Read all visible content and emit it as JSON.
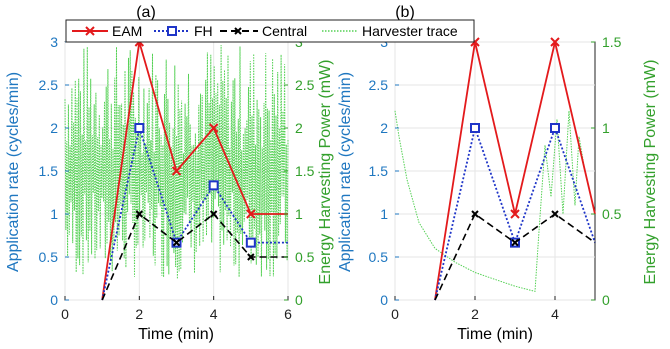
{
  "colors": {
    "left_axis": "#1f77c0",
    "right_axis": "#33a02c",
    "eam": "#e31a1c",
    "fh": "#1f35c8",
    "central": "#000000",
    "harvester": "#55d155"
  },
  "legend": {
    "eam": "EAM",
    "fh": "FH",
    "central": "Central",
    "harvester": "Harvester trace",
    "placement": "top"
  },
  "chart_data": [
    {
      "type": "line",
      "title": "(a)",
      "xlabel": "Time (min)",
      "ylabel": "Application rate (cycles/min)",
      "y2label": "Energy Harvesting Power (mW)",
      "xlim": [
        0,
        6
      ],
      "ylim": [
        0,
        3
      ],
      "y2lim": [
        0,
        3
      ],
      "xticks": [
        "0",
        "2",
        "4",
        "6"
      ],
      "yticks": [
        "0",
        "0.5",
        "1",
        "1.5",
        "2",
        "2.5",
        "3"
      ],
      "y2ticks": [
        "0",
        "0.5",
        "1",
        "1.5",
        "2",
        "2.5",
        "3"
      ],
      "grid": true,
      "series": [
        {
          "name": "EAM",
          "x": [
            1,
            2,
            3,
            4,
            5,
            6
          ],
          "y": [
            0,
            3,
            1.5,
            2,
            1,
            1
          ],
          "axis": "left"
        },
        {
          "name": "FH",
          "x": [
            1,
            2,
            3,
            4,
            5,
            6
          ],
          "y": [
            0,
            2,
            0.667,
            1.333,
            0.667,
            0.667
          ],
          "axis": "left"
        },
        {
          "name": "Central",
          "x": [
            1,
            2,
            3,
            4,
            5,
            6
          ],
          "y": [
            0,
            1,
            0.667,
            1,
            0.5,
            0.5
          ],
          "axis": "left"
        },
        {
          "name": "Harvester trace",
          "axis": "right",
          "style": "dense-oscillation",
          "range": [
            0.1,
            3.0
          ],
          "t_range": [
            0,
            6
          ]
        }
      ]
    },
    {
      "type": "line",
      "title": "(b)",
      "xlabel": "Time (min)",
      "ylabel": "Application rate (cycles/min)",
      "y2label": "Energy Harvesting Power (mW)",
      "xlim": [
        0,
        5
      ],
      "ylim": [
        0,
        3
      ],
      "y2lim": [
        0,
        1.5
      ],
      "xticks": [
        "0",
        "2",
        "4"
      ],
      "yticks": [
        "0",
        "0.5",
        "1",
        "1.5",
        "2",
        "2.5",
        "3"
      ],
      "y2ticks": [
        "0",
        "0.5",
        "1",
        "1.5"
      ],
      "grid": true,
      "series": [
        {
          "name": "EAM",
          "x": [
            1,
            2,
            3,
            4,
            5
          ],
          "y": [
            0,
            3,
            1,
            3,
            1
          ],
          "axis": "left"
        },
        {
          "name": "FH",
          "x": [
            1,
            2,
            3,
            4,
            5
          ],
          "y": [
            0,
            2,
            0.667,
            2,
            0.667
          ],
          "axis": "left"
        },
        {
          "name": "Central",
          "x": [
            1,
            2,
            3,
            4,
            5
          ],
          "y": [
            0,
            1,
            0.667,
            1,
            0.667
          ],
          "axis": "left"
        },
        {
          "name": "Harvester trace",
          "axis": "right",
          "style": "decay-then-spikes",
          "t": [
            0,
            0.1,
            0.3,
            0.6,
            1.0,
            1.5,
            2.0,
            2.5,
            3.0,
            3.5,
            3.6,
            3.75,
            3.9,
            4.05,
            4.2,
            4.35,
            4.5,
            4.6,
            4.75,
            4.9,
            5.0
          ],
          "p": [
            1.1,
            0.95,
            0.7,
            0.45,
            0.3,
            0.22,
            0.16,
            0.12,
            0.08,
            0.05,
            0.4,
            0.9,
            0.6,
            1.05,
            0.5,
            1.1,
            0.55,
            0.95,
            0.75,
            0.6,
            0.5
          ]
        }
      ]
    }
  ]
}
